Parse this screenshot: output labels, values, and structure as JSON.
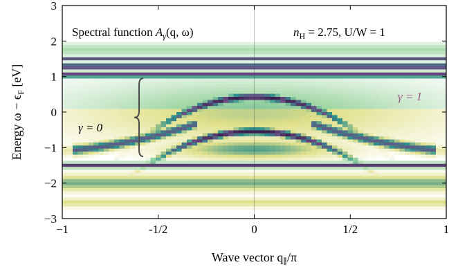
{
  "chart_data": {
    "type": "heatmap",
    "title": "Spectral function A_γ(q, ω)",
    "parameters": "n_H = 2.75, U/W = 1",
    "xlabel": "Wave vector q_∥/π",
    "ylabel": "Energy ω − ε_F [eV]",
    "xlim": [
      -1,
      1
    ],
    "ylim": [
      -3,
      3
    ],
    "xticks": [
      -1,
      -0.5,
      0,
      0.5,
      1
    ],
    "xtick_labels": [
      "−1",
      "-1/2",
      "0",
      "1/2",
      "1"
    ],
    "yticks": [
      -3,
      -2,
      -1,
      0,
      1,
      2,
      3
    ],
    "ytick_labels": [
      "−3",
      "−2",
      "−1",
      "0",
      "1",
      "2",
      "3"
    ],
    "annotations": [
      {
        "text": "γ = 1",
        "x": 0.92,
        "y": 0.8,
        "color": "#9a5b86"
      },
      {
        "text": "γ = 0",
        "x": -0.78,
        "y": -0.25,
        "color": "#000000"
      }
    ],
    "brace": {
      "x": -0.6,
      "y_range": [
        -1.25,
        0.95
      ]
    },
    "bands": [
      {
        "name": "upper flat band",
        "center": 1.2,
        "width": 0.18,
        "color": "#4a2f5c"
      },
      {
        "name": "lower flat band",
        "center": -1.5,
        "width": 0.12,
        "color": "#4a2f5c"
      },
      {
        "name": "lower diffuse band",
        "center": -2.05,
        "width": 0.28,
        "color": "#b59a9f"
      }
    ],
    "dispersive": [
      {
        "name": "upper inverted parabola",
        "peak": 0.42,
        "curvature": 3.4
      },
      {
        "name": "lower inverted parabola",
        "peak": -0.55,
        "curvature": 3.0
      }
    ],
    "colors": {
      "dark": "#2a0f3c",
      "mid_purple": "#6a4d84",
      "teal": "#2e8f8a",
      "green": "#9fd6a3",
      "yellow": "#e0e08a",
      "bg": "#ffffff"
    }
  },
  "labels": {
    "title_main": "Spectral function ",
    "title_math": "A",
    "title_sub": "γ",
    "title_args": "(q, ω)",
    "params": "n",
    "params_sub": "H",
    "params_rest": " = 2.75, U/W = 1",
    "gamma1": "γ = 1",
    "gamma0": "γ = 0",
    "xlabel_main": "Wave vector q",
    "xlabel_sub": "∥",
    "xlabel_rest": "/π",
    "ylabel_main": "Energy ω − ϵ",
    "ylabel_sub": "F",
    "ylabel_rest": " [eV]"
  }
}
